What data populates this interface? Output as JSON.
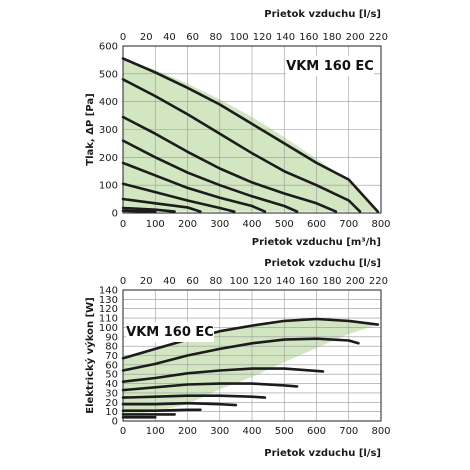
{
  "colors": {
    "fill": "#d2e6c2",
    "curve": "#1c1c1c",
    "grid": "#9a9a9a",
    "frame": "#222222"
  },
  "chart_data": [
    {
      "type": "line",
      "title": "VKM 160 EC",
      "xlabel": "Prietok vzduchu [m³/h]",
      "x2label": "Prietok vzduchu [l/s]",
      "ylabel": "Tlak, ΔP [Pa]",
      "xlim": [
        0,
        800
      ],
      "ylim": [
        0,
        600
      ],
      "x2lim": [
        0,
        222.2
      ],
      "xticks": [
        "0",
        "100",
        "200",
        "300",
        "400",
        "500",
        "600",
        "700",
        "800"
      ],
      "x2ticks": [
        "0",
        "20",
        "40",
        "60",
        "80",
        "100",
        "120",
        "140",
        "160",
        "180",
        "200",
        "220"
      ],
      "yticks": [
        "0",
        "100",
        "200",
        "300",
        "400",
        "500",
        "600"
      ],
      "grid": true,
      "envelope": [
        [
          0,
          555
        ],
        [
          100,
          515
        ],
        [
          200,
          465
        ],
        [
          300,
          408
        ],
        [
          400,
          345
        ],
        [
          500,
          272
        ],
        [
          600,
          195
        ],
        [
          700,
          115
        ],
        [
          790,
          5
        ],
        [
          700,
          5
        ],
        [
          600,
          5
        ],
        [
          500,
          5
        ],
        [
          400,
          5
        ],
        [
          300,
          5
        ],
        [
          200,
          5
        ],
        [
          100,
          5
        ],
        [
          0,
          5
        ]
      ],
      "series": [
        {
          "x": [
            0,
            100,
            200,
            300,
            400,
            500,
            600,
            700,
            790
          ],
          "y": [
            555,
            505,
            450,
            390,
            320,
            250,
            180,
            120,
            5
          ]
        },
        {
          "x": [
            0,
            100,
            200,
            300,
            400,
            500,
            600,
            700,
            735
          ],
          "y": [
            480,
            420,
            355,
            285,
            215,
            150,
            100,
            45,
            5
          ]
        },
        {
          "x": [
            0,
            100,
            200,
            300,
            400,
            500,
            600,
            660
          ],
          "y": [
            345,
            285,
            220,
            160,
            110,
            70,
            35,
            5
          ]
        },
        {
          "x": [
            0,
            100,
            200,
            300,
            400,
            500,
            540
          ],
          "y": [
            260,
            200,
            145,
            100,
            60,
            25,
            5
          ]
        },
        {
          "x": [
            0,
            100,
            200,
            300,
            400,
            440
          ],
          "y": [
            180,
            135,
            90,
            55,
            25,
            5
          ]
        },
        {
          "x": [
            0,
            100,
            200,
            300,
            345
          ],
          "y": [
            105,
            75,
            45,
            18,
            5
          ]
        },
        {
          "x": [
            0,
            100,
            200,
            240
          ],
          "y": [
            50,
            35,
            20,
            5
          ]
        },
        {
          "x": [
            0,
            100,
            160
          ],
          "y": [
            18,
            12,
            5
          ]
        },
        {
          "x": [
            0,
            60,
            100
          ],
          "y": [
            8,
            6,
            4
          ]
        }
      ]
    },
    {
      "type": "line",
      "title": "VKM 160 EC",
      "xlabel": "Prietok vzduchu [l/s]",
      "x2label": "Prietok vzduchu [l/s]",
      "ylabel": "Elektrický výkon [W]",
      "xlim": [
        0,
        800
      ],
      "ylim": [
        0,
        140
      ],
      "x2lim": [
        0,
        222.2
      ],
      "xticks": [
        "0",
        "100",
        "200",
        "300",
        "400",
        "500",
        "600",
        "700",
        "800"
      ],
      "x2ticks": [
        "0",
        "20",
        "40",
        "60",
        "80",
        "100",
        "120",
        "140",
        "160",
        "180",
        "200",
        "220"
      ],
      "yticks": [
        "0",
        "10",
        "20",
        "30",
        "40",
        "50",
        "60",
        "70",
        "80",
        "90",
        "100",
        "110",
        "120",
        "130",
        "140"
      ],
      "grid": true,
      "envelope": [
        [
          0,
          67
        ],
        [
          100,
          77
        ],
        [
          200,
          87
        ],
        [
          300,
          96
        ],
        [
          400,
          102
        ],
        [
          500,
          107
        ],
        [
          600,
          109
        ],
        [
          700,
          107
        ],
        [
          790,
          103
        ],
        [
          700,
          93
        ],
        [
          600,
          78
        ],
        [
          500,
          63
        ],
        [
          400,
          47
        ],
        [
          300,
          34
        ],
        [
          200,
          18
        ],
        [
          100,
          10
        ],
        [
          0,
          6
        ]
      ],
      "series": [
        {
          "x": [
            0,
            100,
            200,
            300,
            400,
            500,
            600,
            700,
            790
          ],
          "y": [
            67,
            77,
            87,
            96,
            102,
            107,
            109,
            107,
            103
          ]
        },
        {
          "x": [
            0,
            100,
            200,
            300,
            400,
            500,
            600,
            700,
            730
          ],
          "y": [
            54,
            61,
            70,
            77,
            83,
            87,
            88,
            86,
            83
          ]
        },
        {
          "x": [
            0,
            100,
            200,
            300,
            400,
            500,
            620
          ],
          "y": [
            42,
            46,
            51,
            54,
            56,
            56,
            53
          ]
        },
        {
          "x": [
            0,
            100,
            200,
            300,
            400,
            500,
            540
          ],
          "y": [
            33,
            36,
            39,
            40,
            40,
            38,
            37
          ]
        },
        {
          "x": [
            0,
            100,
            200,
            300,
            400,
            440
          ],
          "y": [
            25,
            26,
            27,
            27,
            26,
            25
          ]
        },
        {
          "x": [
            0,
            100,
            200,
            300,
            350
          ],
          "y": [
            18,
            18,
            19,
            18,
            17
          ]
        },
        {
          "x": [
            0,
            100,
            200,
            240
          ],
          "y": [
            11,
            11,
            12,
            12
          ]
        },
        {
          "x": [
            0,
            100,
            160
          ],
          "y": [
            7,
            7,
            7
          ]
        },
        {
          "x": [
            0,
            60,
            100
          ],
          "y": [
            4,
            4,
            4
          ]
        }
      ]
    }
  ]
}
